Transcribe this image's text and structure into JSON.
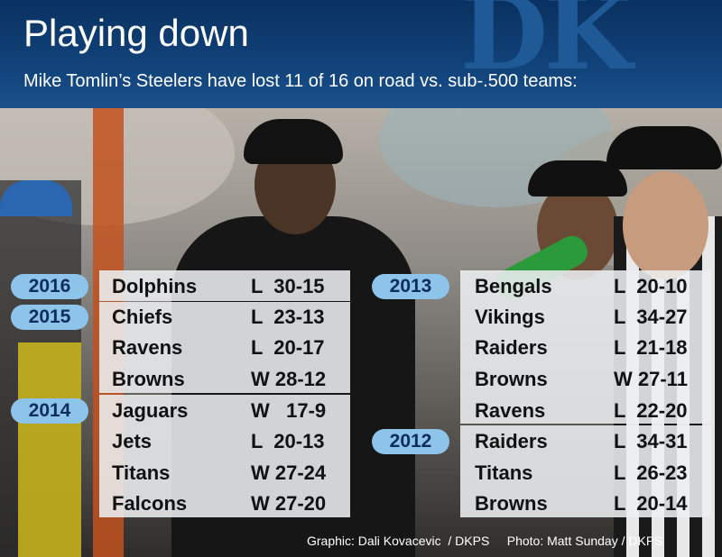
{
  "header": {
    "title": "Playing down",
    "subtitle": "Mike Tomlin’s Steelers have lost 11 of 16 on road vs. sub-.500 teams:",
    "logo_text": "DK"
  },
  "seasons": {
    "s2016": {
      "year": "2016",
      "games": [
        {
          "team": "Dolphins",
          "result": "L  30-15"
        }
      ]
    },
    "s2015": {
      "year": "2015",
      "games": [
        {
          "team": "Chiefs",
          "result": "L  23-13"
        },
        {
          "team": "Ravens",
          "result": "L  20-17"
        },
        {
          "team": "Browns",
          "result": "W 28-12"
        }
      ]
    },
    "s2014": {
      "year": "2014",
      "games": [
        {
          "team": "Jaguars",
          "result": "W   17-9"
        },
        {
          "team": "Jets",
          "result": "L  20-13"
        },
        {
          "team": "Titans",
          "result": "W 27-24"
        },
        {
          "team": "Falcons",
          "result": "W 27-20"
        }
      ]
    },
    "s2013": {
      "year": "2013",
      "games": [
        {
          "team": "Bengals",
          "result": "L  20-10"
        },
        {
          "team": "Vikings",
          "result": "L  34-27"
        },
        {
          "team": "Raiders",
          "result": "L  21-18"
        },
        {
          "team": "Browns",
          "result": "W 27-11"
        },
        {
          "team": "Ravens",
          "result": "L  22-20"
        }
      ]
    },
    "s2012": {
      "year": "2012",
      "games": [
        {
          "team": "Raiders",
          "result": "L  34-31"
        },
        {
          "team": "Titans",
          "result": "L  26-23"
        },
        {
          "team": "Browns",
          "result": "L  20-14"
        }
      ]
    }
  },
  "credits": "Graphic: Dali Kovacevic  / DKPS     Photo: Matt Sunday / DKPS",
  "colors": {
    "header_bg": "#11427a",
    "badge": "#8ec4ea",
    "panel": "#eceef0"
  }
}
